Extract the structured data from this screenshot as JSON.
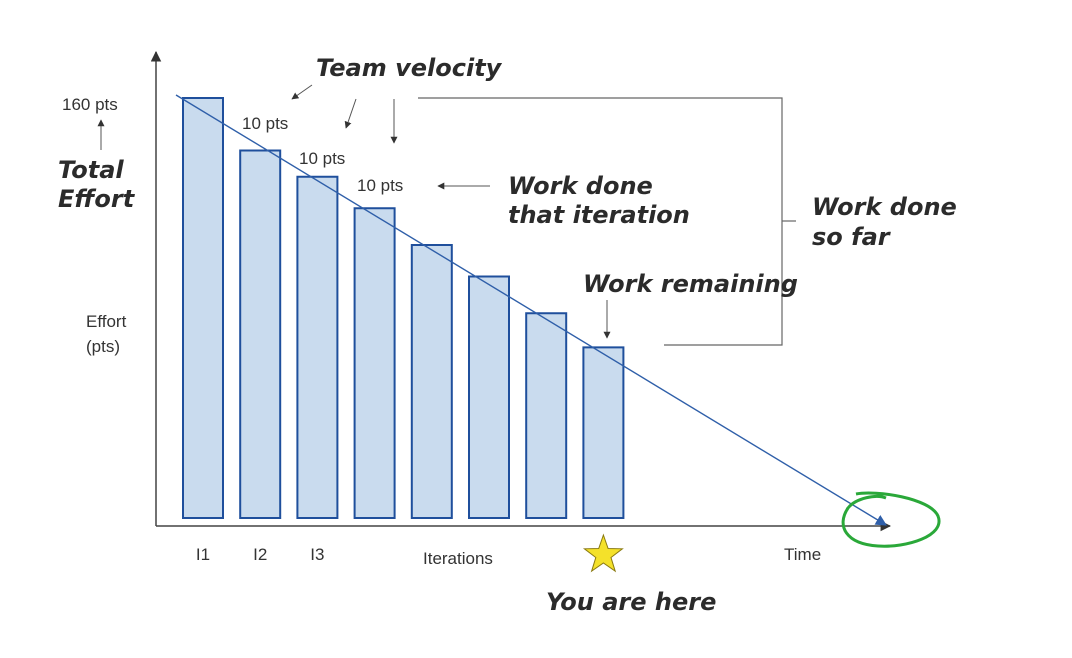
{
  "labels": {
    "total_value": "160 pts",
    "total_effort_line1": "Total",
    "total_effort_line2": "Effort",
    "ylabel_line1": "Effort",
    "ylabel_line2": "(pts)",
    "team_velocity": "Team velocity",
    "work_done_iteration_line1": "Work done",
    "work_done_iteration_line2": "that iteration",
    "work_done_so_far_line1": "Work done",
    "work_done_so_far_line2": "so far",
    "work_remaining": "Work remaining",
    "you_are_here": "You are here",
    "time": "Time",
    "iterations": "Iterations"
  },
  "chart_data": {
    "type": "bar",
    "categories": [
      "I1",
      "I2",
      "I3",
      "",
      "",
      "",
      "",
      ""
    ],
    "values": [
      160,
      140,
      130,
      118,
      104,
      92,
      78,
      65
    ],
    "xlabel": "Iterations",
    "ylabel": "Effort (pts)",
    "ylim": [
      0,
      160
    ],
    "velocity_labels": [
      "10 pts",
      "10 pts",
      "10 pts"
    ],
    "trend_line": {
      "start_value": 160,
      "end_label": "Time"
    },
    "current_iteration_marker": "You are here",
    "colors": {
      "bar_fill": "#c9dbee",
      "bar_stroke": "#1f4f9c",
      "trend": "#2f5fa9",
      "star": "#f4e12a",
      "circle": "#2aa839"
    }
  }
}
